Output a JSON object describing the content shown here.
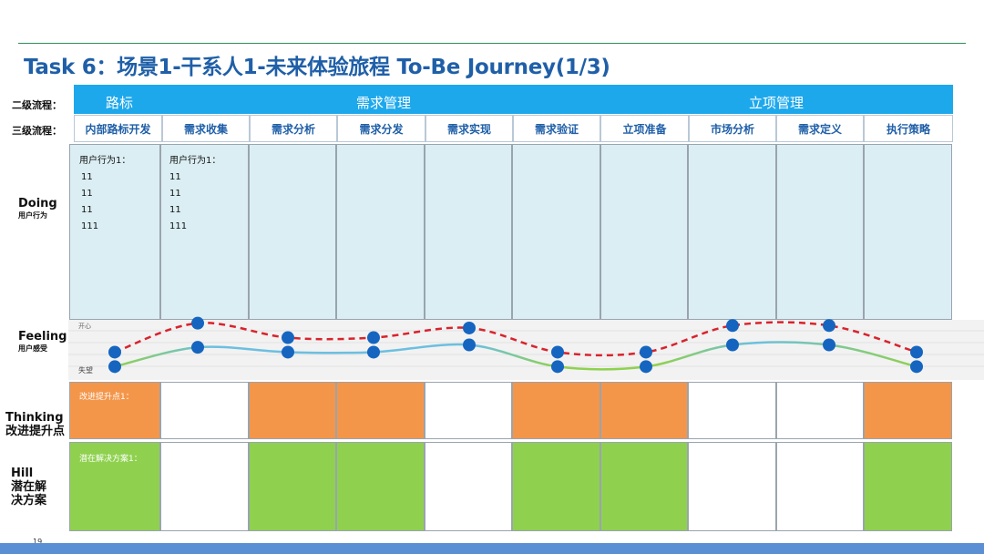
{
  "title": "Task 6：场景1-干系人1-未来体验旅程 To-Be Journey(1/3)",
  "row_labels": {
    "level2": "二级流程：",
    "level3": "三级流程：",
    "doing": "Doing",
    "doing_sub": "用户行为",
    "feeling": "Feeling",
    "feeling_sub": "用户感受",
    "thinking_line1": "Thinking",
    "thinking_line2": "改进提升点",
    "hill_line1": "Hill",
    "hill_line2": "潜在解",
    "hill_line3": "决方案"
  },
  "level2": [
    "路标",
    "需求管理",
    "立项管理"
  ],
  "level3": [
    "内部路标开发",
    "需求收集",
    "需求分析",
    "需求分发",
    "需求实现",
    "需求验证",
    "立项准备",
    "市场分析",
    "需求定义",
    "执行策略"
  ],
  "doing_cells": [
    {
      "title": "用户行为1：",
      "lines": [
        "11",
        "11",
        "11",
        "111"
      ]
    },
    {
      "title": "用户行为1：",
      "lines": [
        "11",
        "11",
        "11",
        "111"
      ]
    }
  ],
  "feeling_scale": {
    "top": "开心",
    "bottom": "失望"
  },
  "feeling_red": [
    0.35,
    0.95,
    0.65,
    0.65,
    0.85,
    0.35,
    0.35,
    0.9,
    0.9,
    0.35
  ],
  "feeling_solid": [
    0.05,
    0.45,
    0.35,
    0.35,
    0.5,
    0.05,
    0.05,
    0.5,
    0.5,
    0.05
  ],
  "thinking_cells": [
    {
      "color": "orange",
      "text": "改进提升点1："
    },
    {
      "color": "white",
      "text": ""
    },
    {
      "color": "orange",
      "text": ""
    },
    {
      "color": "orange",
      "text": ""
    },
    {
      "color": "white",
      "text": ""
    },
    {
      "color": "orange",
      "text": ""
    },
    {
      "color": "orange",
      "text": ""
    },
    {
      "color": "white",
      "text": ""
    },
    {
      "color": "white",
      "text": ""
    },
    {
      "color": "orange",
      "text": ""
    }
  ],
  "hill_cells": [
    {
      "color": "green",
      "text": "潜在解决方案1："
    },
    {
      "color": "white",
      "text": ""
    },
    {
      "color": "green",
      "text": ""
    },
    {
      "color": "green",
      "text": ""
    },
    {
      "color": "white",
      "text": ""
    },
    {
      "color": "green",
      "text": ""
    },
    {
      "color": "green",
      "text": ""
    },
    {
      "color": "white",
      "text": ""
    },
    {
      "color": "white",
      "text": ""
    },
    {
      "color": "green",
      "text": ""
    }
  ],
  "colors": {
    "accent": "#1ea8ec",
    "title": "#1f5fa8",
    "orange": "#f4964a",
    "green": "#8fd14f",
    "doing": "#dbeef3",
    "red_line": "#d9232d",
    "dot": "#1565c0"
  },
  "page_number": "19"
}
